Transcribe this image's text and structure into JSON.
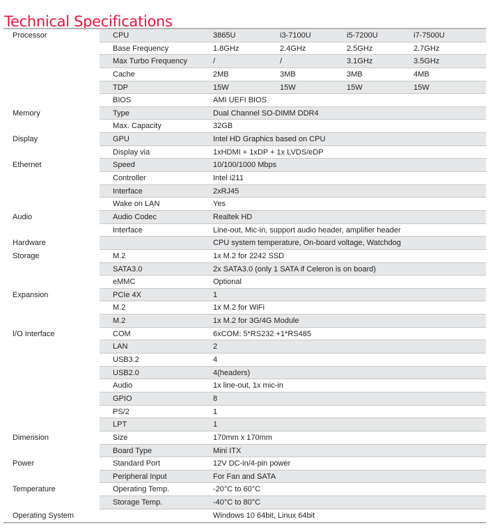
{
  "title": "Technical Specifications",
  "colors": {
    "title": "#e3173e",
    "row_shade": "#e6e7e8",
    "rule": "#b5b5b5"
  },
  "rows": [
    {
      "group": "Processor",
      "label": "CPU",
      "values": [
        "3865U",
        "i3-7100U",
        "i5-7200U",
        "i7-7500U"
      ]
    },
    {
      "group": "",
      "label": "Base Frequency",
      "values": [
        "1.8GHz",
        "2.4GHz",
        "2.5GHz",
        "2.7GHz"
      ]
    },
    {
      "group": "",
      "label": "Max Turbo Frequency",
      "values": [
        "/",
        "/",
        "3.1GHz",
        "3.5GHz"
      ]
    },
    {
      "group": "",
      "label": "Cache",
      "values": [
        "2MB",
        "3MB",
        "3MB",
        "4MB"
      ]
    },
    {
      "group": "",
      "label": "TDP",
      "values": [
        "15W",
        "15W",
        "15W",
        "15W"
      ]
    },
    {
      "group": "",
      "label": "BIOS",
      "values": [
        "AMI UEFI BIOS"
      ]
    },
    {
      "group": "Memory",
      "label": "Type",
      "values": [
        "Dual Channel SO-DIMM DDR4"
      ]
    },
    {
      "group": "",
      "label": "Max. Capacity",
      "values": [
        "32GB"
      ]
    },
    {
      "group": "Display",
      "label": "GPU",
      "values": [
        "Intel HD Graphics based on CPU"
      ]
    },
    {
      "group": "",
      "label": "Display via",
      "values": [
        "1xHDMI + 1xDP + 1x LVDS/eDP"
      ]
    },
    {
      "group": "Ethernet",
      "label": "Speed",
      "values": [
        "10/100/1000 Mbps"
      ]
    },
    {
      "group": "",
      "label": "Controller",
      "values": [
        "Intel i211"
      ]
    },
    {
      "group": "",
      "label": "Interface",
      "values": [
        "2xRJ45"
      ]
    },
    {
      "group": "",
      "label": "Wake on LAN",
      "values": [
        "Yes"
      ]
    },
    {
      "group": "Audio",
      "label": "Audio Codec",
      "values": [
        "Realtek HD"
      ]
    },
    {
      "group": "",
      "label": "Interface",
      "values": [
        "Line-out, Mic-in, support audio header, amplifier header"
      ]
    },
    {
      "group": "Hardware",
      "label": "",
      "values": [
        "CPU system temperature, On-board voltage, Watchdog"
      ]
    },
    {
      "group": "Storage",
      "label": "M.2",
      "values": [
        "1x M.2 for 2242 SSD"
      ]
    },
    {
      "group": "",
      "label": "SATA3.0",
      "values": [
        "2x SATA3.0 (only 1 SATA if Celeron is on board)"
      ]
    },
    {
      "group": "",
      "label": "eMMC",
      "values": [
        "Optional"
      ]
    },
    {
      "group": "Expansion",
      "label": "PCIe 4X",
      "values": [
        "1"
      ]
    },
    {
      "group": "",
      "label": "M.2",
      "values": [
        "1x M.2 for WiFi"
      ]
    },
    {
      "group": "",
      "label": "M.2",
      "values": [
        "1x M.2 for 3G/4G Module"
      ]
    },
    {
      "group": "I/O Interface",
      "label": "COM",
      "values": [
        "6xCOM: 5*RS232 +1*RS485"
      ]
    },
    {
      "group": "",
      "label": "LAN",
      "values": [
        "2"
      ]
    },
    {
      "group": "",
      "label": "USB3.2",
      "values": [
        "4"
      ]
    },
    {
      "group": "",
      "label": "USB2.0",
      "values": [
        "4(headers)"
      ]
    },
    {
      "group": "",
      "label": "Audio",
      "values": [
        "1x line-out, 1x mic-in"
      ]
    },
    {
      "group": "",
      "label": "GPIO",
      "values": [
        "8"
      ]
    },
    {
      "group": "",
      "label": "PS/2",
      "values": [
        "1"
      ]
    },
    {
      "group": "",
      "label": "LPT",
      "values": [
        "1"
      ]
    },
    {
      "group": "Dimension",
      "label": "Size",
      "values": [
        "170mm x 170mm"
      ]
    },
    {
      "group": "",
      "label": "Board Type",
      "values": [
        "Mini ITX"
      ]
    },
    {
      "group": "Power",
      "label": "Standard Port",
      "values": [
        "12V DC-in/4-pin power"
      ]
    },
    {
      "group": "",
      "label": "Peripheral Input",
      "values": [
        "For Fan and SATA"
      ]
    },
    {
      "group": "Temperature",
      "label": "Operating Temp.",
      "values": [
        "-20°C to 60°C"
      ]
    },
    {
      "group": "",
      "label": "Storage Temp.",
      "values": [
        "-40°C to 80°C"
      ]
    },
    {
      "group": "Operating System",
      "label": "",
      "values": [
        "Windows 10 64bit, Linux 64bit"
      ]
    }
  ]
}
